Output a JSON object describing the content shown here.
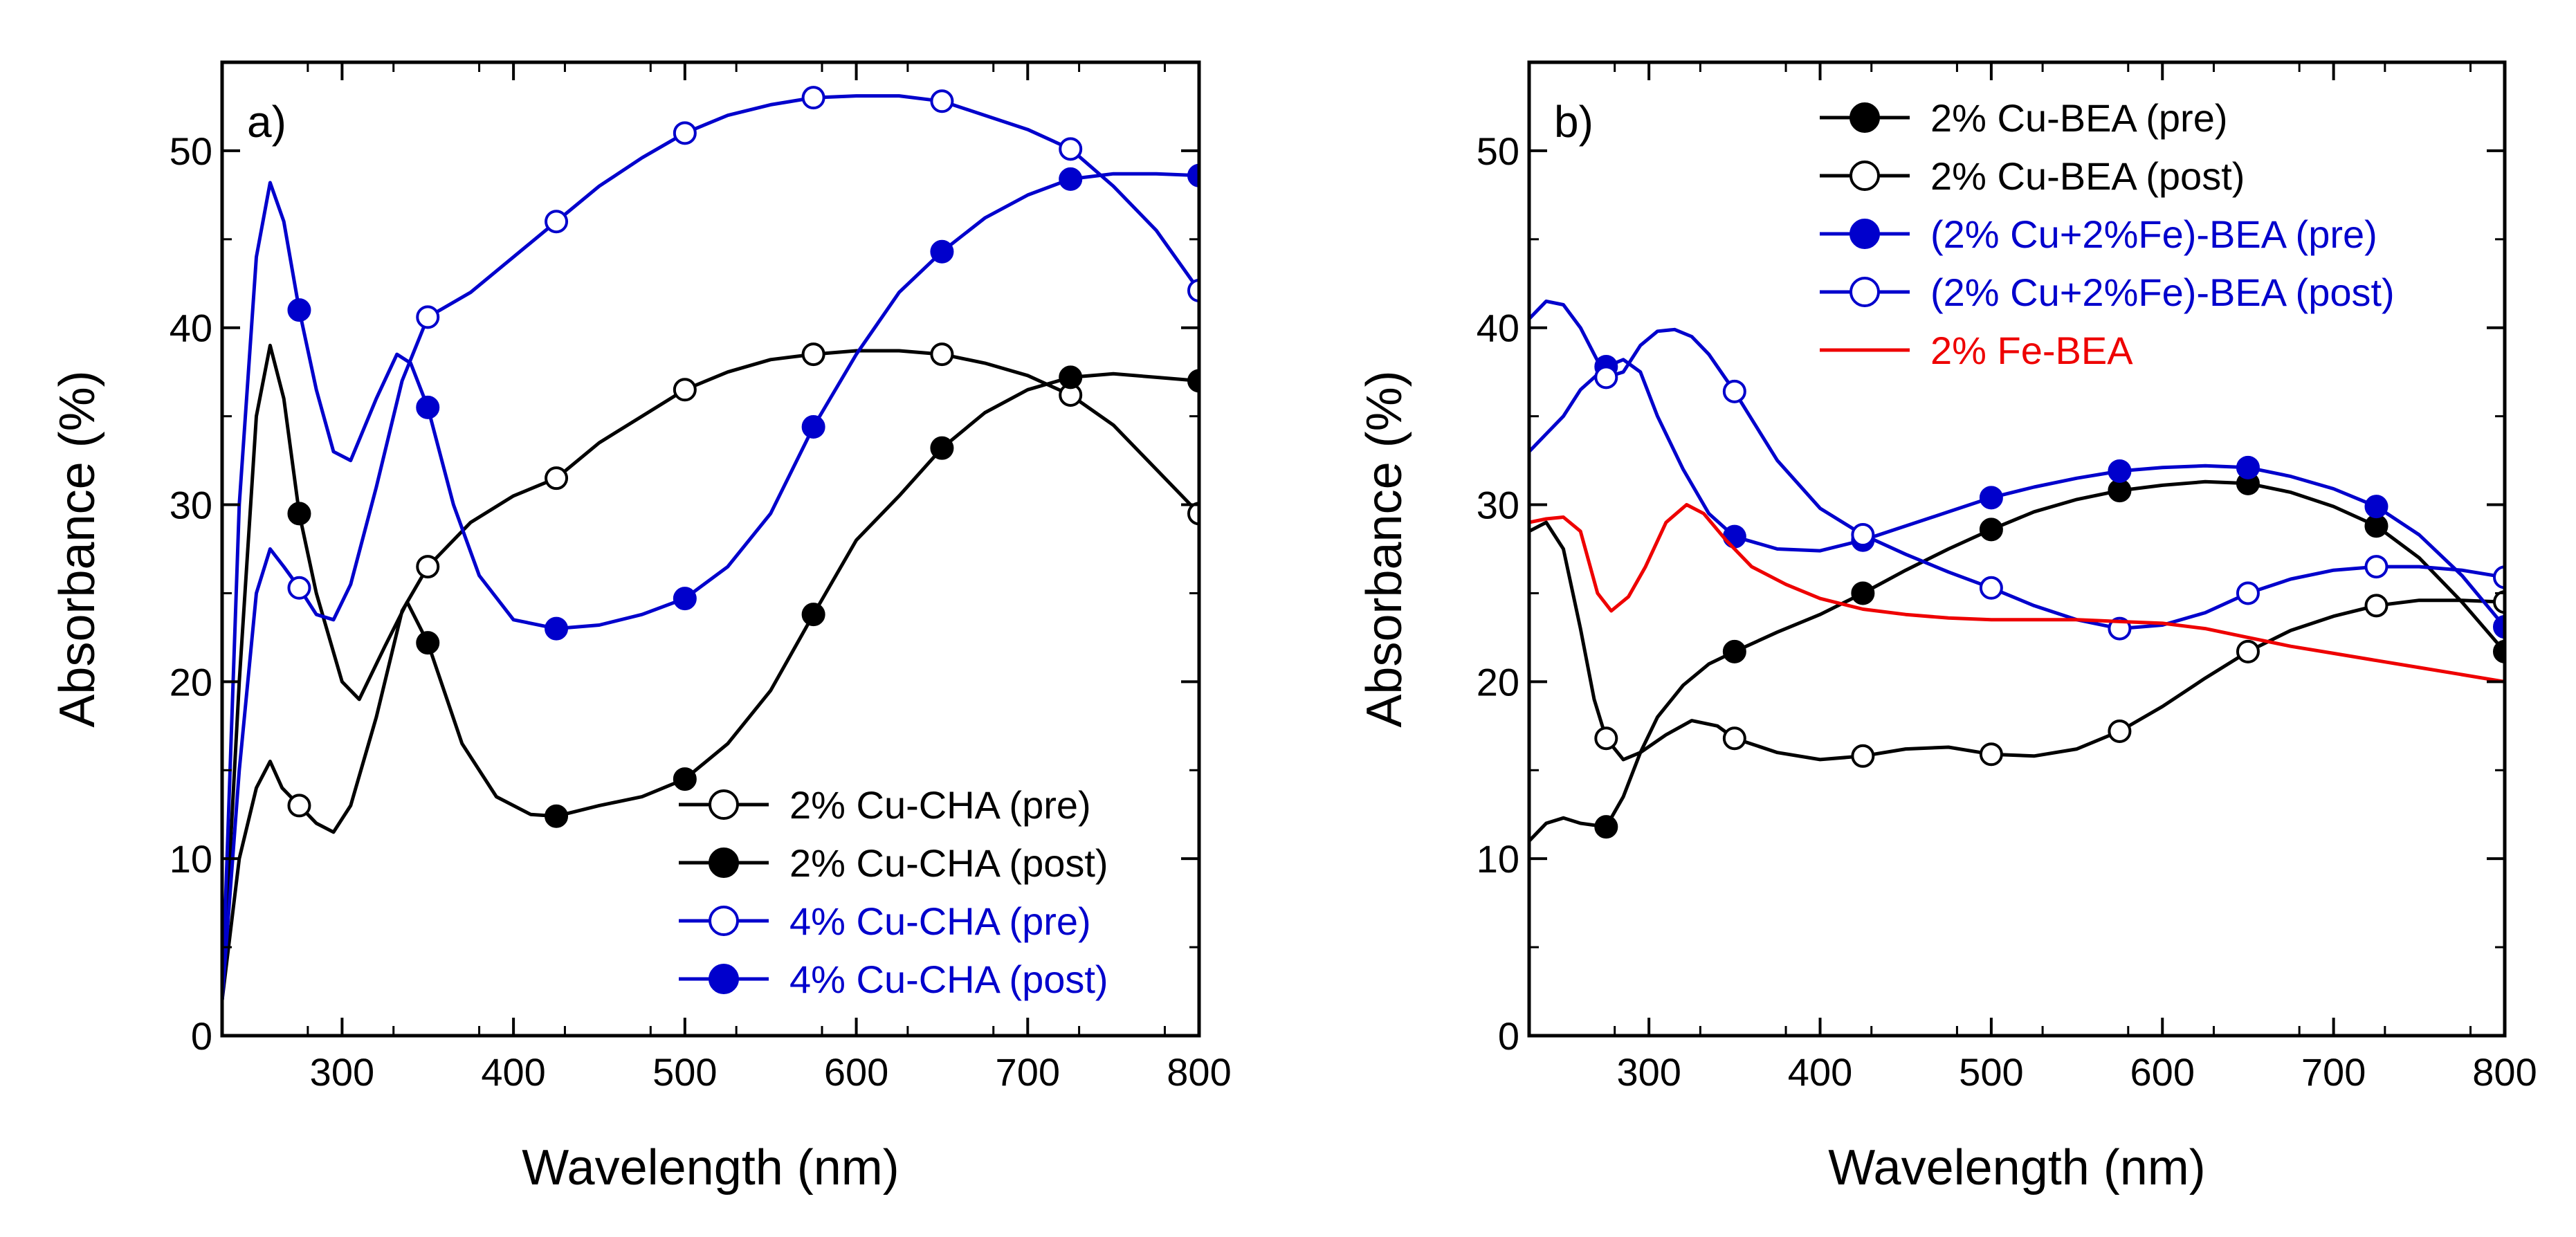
{
  "chart_data": [
    {
      "type": "line",
      "panel_label": "a)",
      "xlabel": "Wavelength (nm)",
      "ylabel": "Absorbance (%)",
      "xlim": [
        230,
        800
      ],
      "ylim": [
        0,
        55
      ],
      "xticks": [
        300,
        400,
        500,
        600,
        700,
        800
      ],
      "yticks": [
        0,
        10,
        20,
        30,
        40,
        50
      ],
      "legend_position": "bottom-right",
      "series": [
        {
          "name": "2% Cu-CHA (pre)",
          "color": "#000000",
          "marker": "open-circle",
          "x": [
            230,
            240,
            250,
            258,
            265,
            275,
            285,
            295,
            305,
            320,
            335,
            350,
            375,
            400,
            425,
            450,
            475,
            500,
            525,
            550,
            575,
            600,
            625,
            650,
            675,
            700,
            725,
            750,
            775,
            800
          ],
          "y": [
            2,
            10,
            14,
            15.5,
            14,
            13,
            12,
            11.5,
            13,
            18,
            24,
            26.5,
            29,
            30.5,
            31.5,
            33.5,
            35,
            36.5,
            37.5,
            38.2,
            38.5,
            38.7,
            38.7,
            38.5,
            38,
            37.3,
            36.2,
            34.5,
            32,
            29.5
          ],
          "marker_x": [
            275,
            350,
            425,
            500,
            575,
            650,
            725,
            800
          ],
          "marker_y": [
            13,
            26.5,
            31.5,
            36.5,
            38.5,
            38.5,
            36.2,
            29.5
          ]
        },
        {
          "name": "2% Cu-CHA (post)",
          "color": "#000000",
          "marker": "filled-circle",
          "x": [
            230,
            240,
            250,
            258,
            266,
            275,
            285,
            300,
            310,
            325,
            338,
            350,
            370,
            390,
            410,
            425,
            450,
            475,
            500,
            525,
            550,
            575,
            600,
            625,
            650,
            675,
            700,
            725,
            750,
            775,
            800
          ],
          "y": [
            2,
            20,
            35,
            39,
            36,
            29.5,
            25,
            20,
            19,
            22,
            24.5,
            22.2,
            16.5,
            13.5,
            12.5,
            12.4,
            13,
            13.5,
            14.5,
            16.5,
            19.5,
            23.8,
            28,
            30.5,
            33.2,
            35.2,
            36.5,
            37.2,
            37.4,
            37.2,
            37
          ],
          "marker_x": [
            275,
            350,
            425,
            500,
            575,
            650,
            725,
            800
          ],
          "marker_y": [
            29.5,
            22.2,
            12.4,
            14.5,
            23.8,
            33.2,
            37.2,
            37
          ]
        },
        {
          "name": "4% Cu-CHA (pre)",
          "color": "#0000cc",
          "marker": "open-circle",
          "x": [
            230,
            240,
            250,
            258,
            266,
            275,
            285,
            295,
            305,
            320,
            335,
            350,
            375,
            400,
            425,
            450,
            475,
            500,
            525,
            550,
            575,
            600,
            625,
            650,
            675,
            700,
            725,
            750,
            775,
            800
          ],
          "y": [
            2,
            15,
            25,
            27.5,
            26.5,
            25.3,
            23.8,
            23.5,
            25.5,
            31,
            37,
            40.6,
            42,
            44,
            46,
            48,
            49.6,
            51,
            52,
            52.6,
            53,
            53.1,
            53.1,
            52.8,
            52,
            51.2,
            50.1,
            48,
            45.5,
            42.1
          ],
          "marker_x": [
            275,
            350,
            425,
            500,
            575,
            650,
            725,
            800
          ],
          "marker_y": [
            25.3,
            40.6,
            46,
            51,
            53,
            52.8,
            50.1,
            42.1
          ]
        },
        {
          "name": "4% Cu-CHA (post)",
          "color": "#0000cc",
          "marker": "filled-circle",
          "x": [
            230,
            240,
            250,
            258,
            266,
            275,
            285,
            295,
            305,
            320,
            332,
            340,
            350,
            365,
            380,
            400,
            425,
            450,
            475,
            500,
            525,
            550,
            575,
            600,
            625,
            650,
            675,
            700,
            725,
            750,
            775,
            800
          ],
          "y": [
            2,
            30,
            44,
            48.2,
            46,
            41,
            36.5,
            33,
            32.5,
            36,
            38.5,
            38,
            35.5,
            30,
            26,
            23.5,
            23,
            23.2,
            23.8,
            24.7,
            26.5,
            29.5,
            34.4,
            38.5,
            42,
            44.3,
            46.2,
            47.5,
            48.4,
            48.7,
            48.7,
            48.6
          ],
          "marker_x": [
            275,
            350,
            425,
            500,
            575,
            650,
            725,
            800
          ],
          "marker_y": [
            41,
            35.5,
            23,
            24.7,
            34.4,
            44.3,
            48.4,
            48.6
          ]
        }
      ]
    },
    {
      "type": "line",
      "panel_label": "b)",
      "xlabel": "Wavelength (nm)",
      "ylabel": "Absorbance (%)",
      "xlim": [
        230,
        800
      ],
      "ylim": [
        0,
        55
      ],
      "xticks": [
        300,
        400,
        500,
        600,
        700,
        800
      ],
      "yticks": [
        0,
        10,
        20,
        30,
        40,
        50
      ],
      "legend_position": "top-left",
      "series": [
        {
          "name": "2% Cu-BEA (pre)",
          "color": "#000000",
          "marker": "filled-circle",
          "x": [
            230,
            240,
            250,
            260,
            275,
            285,
            295,
            305,
            320,
            335,
            350,
            375,
            400,
            425,
            450,
            475,
            500,
            525,
            550,
            575,
            600,
            625,
            650,
            675,
            700,
            725,
            750,
            775,
            800
          ],
          "y": [
            11,
            12,
            12.3,
            12,
            11.8,
            13.5,
            16,
            18,
            19.8,
            21,
            21.7,
            22.8,
            23.8,
            25,
            26.3,
            27.5,
            28.6,
            29.6,
            30.3,
            30.8,
            31.1,
            31.3,
            31.2,
            30.7,
            29.9,
            28.8,
            27,
            24.5,
            21.7
          ],
          "marker_x": [
            275,
            350,
            425,
            500,
            575,
            650,
            725,
            800
          ],
          "marker_y": [
            11.8,
            21.7,
            25,
            28.6,
            30.8,
            31.2,
            28.8,
            21.7
          ]
        },
        {
          "name": "2% Cu-BEA (post)",
          "color": "#000000",
          "marker": "open-circle",
          "x": [
            230,
            240,
            250,
            260,
            268,
            275,
            285,
            295,
            310,
            325,
            340,
            350,
            375,
            400,
            425,
            450,
            475,
            500,
            525,
            550,
            575,
            600,
            625,
            650,
            675,
            700,
            725,
            750,
            775,
            800
          ],
          "y": [
            28.5,
            29,
            27.5,
            23,
            19,
            16.8,
            15.6,
            16,
            17,
            17.8,
            17.5,
            16.8,
            16,
            15.6,
            15.8,
            16.2,
            16.3,
            15.9,
            15.8,
            16.2,
            17.2,
            18.6,
            20.2,
            21.7,
            22.9,
            23.7,
            24.3,
            24.6,
            24.6,
            24.5
          ],
          "marker_x": [
            275,
            350,
            425,
            500,
            575,
            650,
            725,
            800
          ],
          "marker_y": [
            16.8,
            16.8,
            15.8,
            15.9,
            17.2,
            21.7,
            24.3,
            24.5
          ]
        },
        {
          "name": "(2% Cu+2%Fe)-BEA (pre)",
          "color": "#0000cc",
          "marker": "filled-circle",
          "x": [
            230,
            240,
            250,
            260,
            275,
            285,
            295,
            305,
            320,
            335,
            350,
            375,
            400,
            425,
            450,
            475,
            500,
            525,
            550,
            575,
            600,
            625,
            650,
            675,
            700,
            725,
            750,
            775,
            800
          ],
          "y": [
            33,
            34,
            35,
            36.5,
            37.8,
            38.2,
            37.5,
            35,
            32,
            29.5,
            28.2,
            27.5,
            27.4,
            28,
            28.8,
            29.6,
            30.4,
            31,
            31.5,
            31.9,
            32.1,
            32.2,
            32.1,
            31.6,
            30.9,
            29.9,
            28.3,
            26,
            23.1
          ],
          "marker_x": [
            275,
            350,
            425,
            500,
            575,
            650,
            725,
            800
          ],
          "marker_y": [
            37.8,
            28.2,
            28,
            30.4,
            31.9,
            32.1,
            29.9,
            23.1
          ]
        },
        {
          "name": "(2% Cu+2%Fe)-BEA (post)",
          "color": "#0000cc",
          "marker": "open-circle",
          "x": [
            230,
            240,
            250,
            260,
            268,
            275,
            285,
            295,
            305,
            315,
            325,
            335,
            350,
            375,
            400,
            425,
            450,
            475,
            500,
            525,
            550,
            575,
            600,
            625,
            650,
            675,
            700,
            725,
            750,
            775,
            800
          ],
          "y": [
            40.5,
            41.5,
            41.3,
            40,
            38.5,
            37.2,
            37.5,
            39,
            39.8,
            39.9,
            39.5,
            38.5,
            36.4,
            32.5,
            29.8,
            28.3,
            27.2,
            26.2,
            25.3,
            24.3,
            23.5,
            23,
            23.2,
            23.9,
            25,
            25.8,
            26.3,
            26.5,
            26.5,
            26.3,
            25.9
          ],
          "marker_x": [
            275,
            350,
            425,
            500,
            575,
            650,
            725,
            800
          ],
          "marker_y": [
            37.2,
            36.4,
            28.3,
            25.3,
            23,
            25,
            26.5,
            25.9
          ]
        },
        {
          "name": "2% Fe-BEA",
          "color": "#ee0000",
          "marker": "none",
          "x": [
            230,
            240,
            250,
            260,
            270,
            278,
            288,
            298,
            310,
            322,
            332,
            345,
            360,
            380,
            400,
            425,
            450,
            475,
            500,
            525,
            550,
            575,
            600,
            625,
            650,
            675,
            700,
            725,
            750,
            775,
            800
          ],
          "y": [
            29,
            29.2,
            29.3,
            28.5,
            25,
            24,
            24.8,
            26.5,
            29,
            30,
            29.5,
            28,
            26.5,
            25.5,
            24.7,
            24.1,
            23.8,
            23.6,
            23.5,
            23.5,
            23.5,
            23.4,
            23.3,
            23,
            22.5,
            22,
            21.6,
            21.2,
            20.8,
            20.4,
            20
          ]
        }
      ]
    }
  ]
}
